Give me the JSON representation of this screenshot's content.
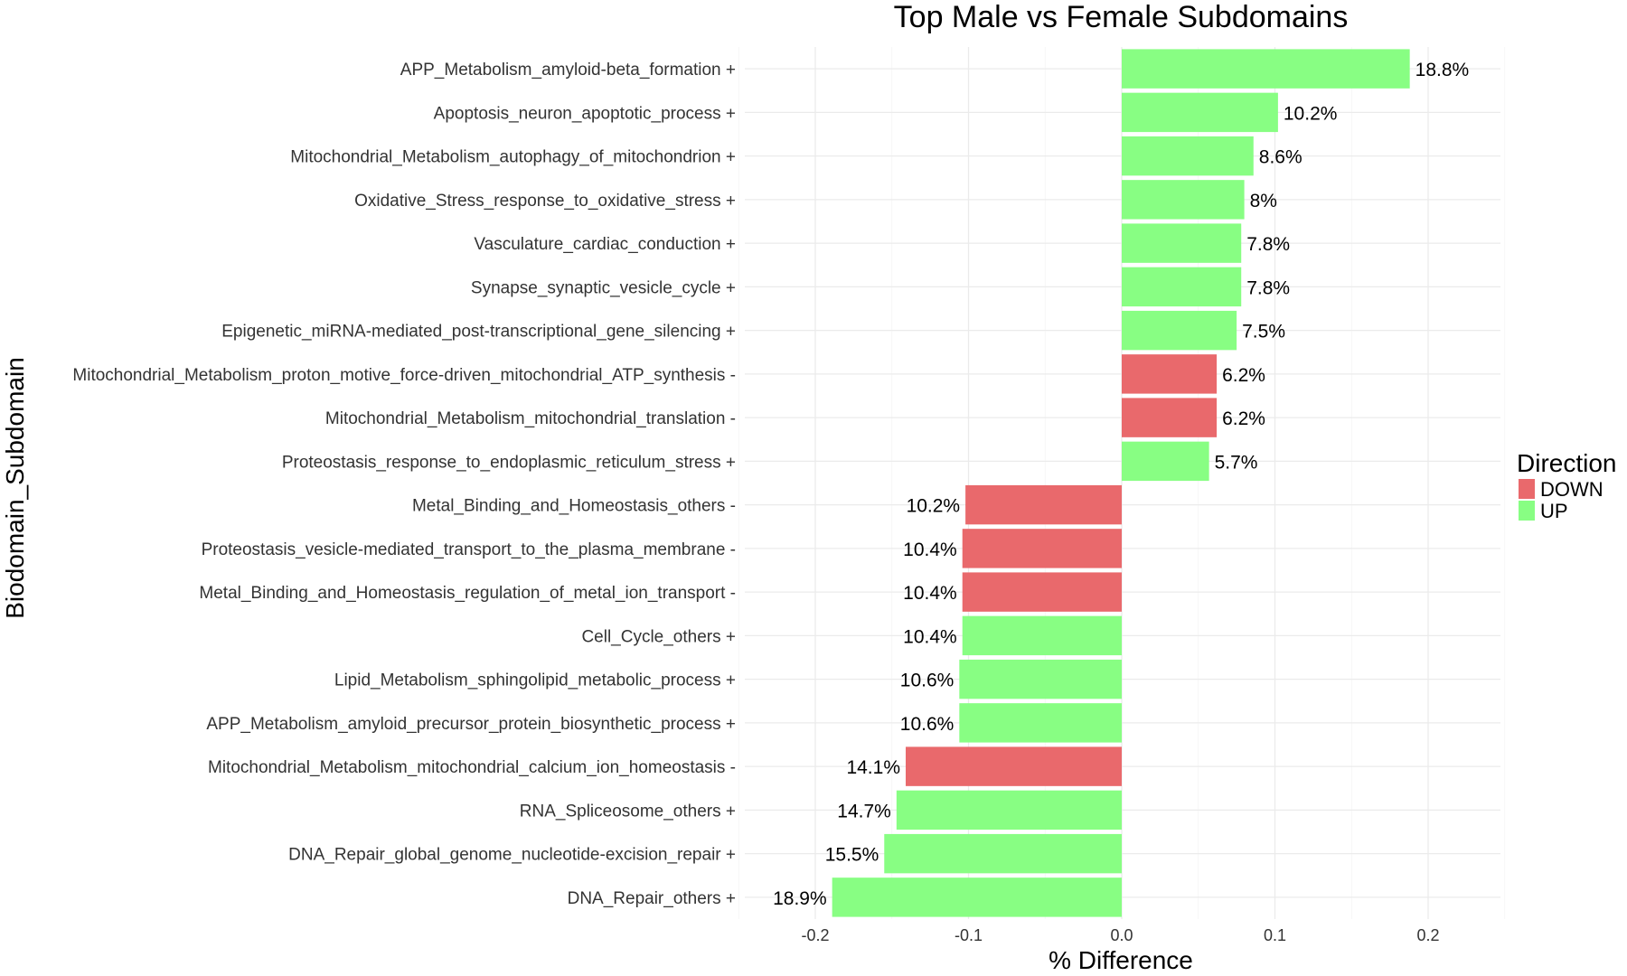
{
  "chart_data": {
    "type": "bar",
    "orientation": "horizontal",
    "title": "Top Male vs Female Subdomains",
    "xlabel": "% Difference",
    "ylabel": "Biodomain_Subdomain",
    "xlim": [
      -0.25,
      0.25
    ],
    "x_ticks": [
      -0.2,
      -0.1,
      0.0,
      0.1,
      0.2
    ],
    "x_tick_labels": [
      "-0.2",
      "-0.1",
      "0.0",
      "0.1",
      "0.2"
    ],
    "grid": true,
    "legend": {
      "title": "Direction",
      "position": "right",
      "entries": [
        {
          "name": "DOWN",
          "color": "#e9696c"
        },
        {
          "name": "UP",
          "color": "#88fe83"
        }
      ]
    },
    "bars": [
      {
        "category": "APP_Metabolism_amyloid-beta_formation +",
        "value": 0.188,
        "label": "18.8%",
        "direction": "UP"
      },
      {
        "category": "Apoptosis_neuron_apoptotic_process +",
        "value": 0.102,
        "label": "10.2%",
        "direction": "UP"
      },
      {
        "category": "Mitochondrial_Metabolism_autophagy_of_mitochondrion +",
        "value": 0.086,
        "label": "8.6%",
        "direction": "UP"
      },
      {
        "category": "Oxidative_Stress_response_to_oxidative_stress +",
        "value": 0.08,
        "label": "8%",
        "direction": "UP"
      },
      {
        "category": "Vasculature_cardiac_conduction +",
        "value": 0.078,
        "label": "7.8%",
        "direction": "UP"
      },
      {
        "category": "Synapse_synaptic_vesicle_cycle +",
        "value": 0.078,
        "label": "7.8%",
        "direction": "UP"
      },
      {
        "category": "Epigenetic_miRNA-mediated_post-transcriptional_gene_silencing +",
        "value": 0.075,
        "label": "7.5%",
        "direction": "UP"
      },
      {
        "category": "Mitochondrial_Metabolism_proton_motive_force-driven_mitochondrial_ATP_synthesis -",
        "value": 0.062,
        "label": "6.2%",
        "direction": "DOWN"
      },
      {
        "category": "Mitochondrial_Metabolism_mitochondrial_translation -",
        "value": 0.062,
        "label": "6.2%",
        "direction": "DOWN"
      },
      {
        "category": "Proteostasis_response_to_endoplasmic_reticulum_stress +",
        "value": 0.057,
        "label": "5.7%",
        "direction": "UP"
      },
      {
        "category": "Metal_Binding_and_Homeostasis_others -",
        "value": -0.102,
        "label": "10.2%",
        "direction": "DOWN"
      },
      {
        "category": "Proteostasis_vesicle-mediated_transport_to_the_plasma_membrane -",
        "value": -0.104,
        "label": "10.4%",
        "direction": "DOWN"
      },
      {
        "category": "Metal_Binding_and_Homeostasis_regulation_of_metal_ion_transport -",
        "value": -0.104,
        "label": "10.4%",
        "direction": "DOWN"
      },
      {
        "category": "Cell_Cycle_others +",
        "value": -0.104,
        "label": "10.4%",
        "direction": "UP"
      },
      {
        "category": "Lipid_Metabolism_sphingolipid_metabolic_process +",
        "value": -0.106,
        "label": "10.6%",
        "direction": "UP"
      },
      {
        "category": "APP_Metabolism_amyloid_precursor_protein_biosynthetic_process +",
        "value": -0.106,
        "label": "10.6%",
        "direction": "UP"
      },
      {
        "category": "Mitochondrial_Metabolism_mitochondrial_calcium_ion_homeostasis -",
        "value": -0.141,
        "label": "14.1%",
        "direction": "DOWN"
      },
      {
        "category": "RNA_Spliceosome_others +",
        "value": -0.147,
        "label": "14.7%",
        "direction": "UP"
      },
      {
        "category": "DNA_Repair_global_genome_nucleotide-excision_repair +",
        "value": -0.155,
        "label": "15.5%",
        "direction": "UP"
      },
      {
        "category": "DNA_Repair_others +",
        "value": -0.189,
        "label": "18.9%",
        "direction": "UP"
      }
    ]
  }
}
